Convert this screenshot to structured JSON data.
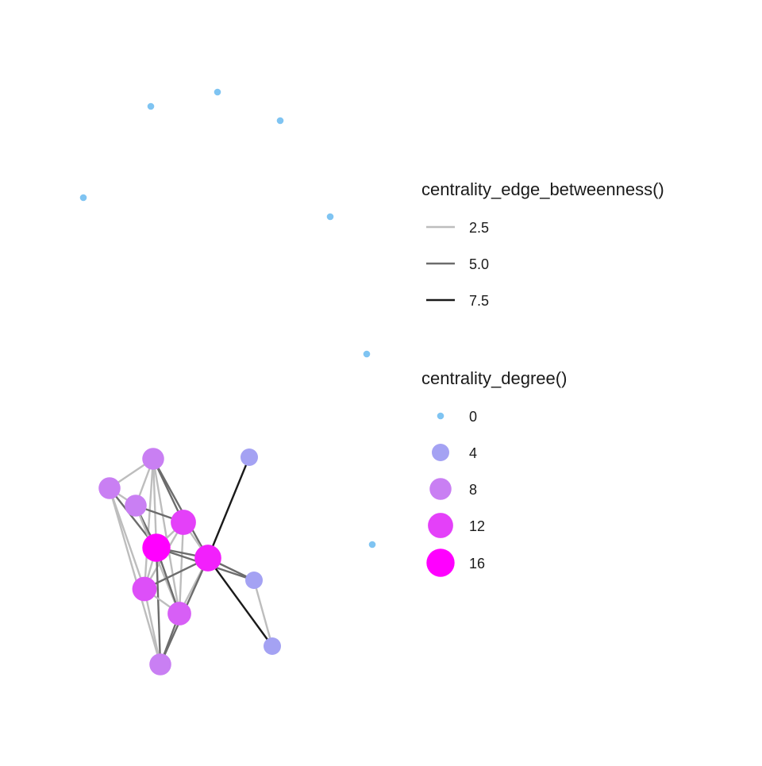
{
  "graph": {
    "nodes": [
      {
        "id": "n1",
        "degree": 0
      },
      {
        "id": "n2",
        "degree": 0
      },
      {
        "id": "n3",
        "degree": 0
      },
      {
        "id": "n4",
        "degree": 0
      },
      {
        "id": "n5",
        "degree": 0
      },
      {
        "id": "n6",
        "degree": 0
      },
      {
        "id": "n7",
        "degree": 0
      },
      {
        "id": "a",
        "degree": 8
      },
      {
        "id": "b",
        "degree": 8
      },
      {
        "id": "c",
        "degree": 8
      },
      {
        "id": "d",
        "degree": 12
      },
      {
        "id": "e",
        "degree": 16
      },
      {
        "id": "f",
        "degree": 14
      },
      {
        "id": "g",
        "degree": 11
      },
      {
        "id": "h",
        "degree": 10
      },
      {
        "id": "i",
        "degree": 8
      },
      {
        "id": "j",
        "degree": 4
      },
      {
        "id": "k",
        "degree": 4
      },
      {
        "id": "l",
        "degree": 4
      }
    ],
    "edges": [
      {
        "from": "a",
        "to": "b",
        "betweenness": 2.5
      },
      {
        "from": "a",
        "to": "c",
        "betweenness": 2.5
      },
      {
        "from": "a",
        "to": "d",
        "betweenness": 5.0
      },
      {
        "from": "a",
        "to": "e",
        "betweenness": 2.5
      },
      {
        "from": "a",
        "to": "g",
        "betweenness": 2.5
      },
      {
        "from": "a",
        "to": "h",
        "betweenness": 2.5
      },
      {
        "from": "a",
        "to": "f",
        "betweenness": 5.0
      },
      {
        "from": "b",
        "to": "c",
        "betweenness": 2.5
      },
      {
        "from": "b",
        "to": "e",
        "betweenness": 5.0
      },
      {
        "from": "b",
        "to": "g",
        "betweenness": 2.5
      },
      {
        "from": "b",
        "to": "i",
        "betweenness": 2.5
      },
      {
        "from": "c",
        "to": "d",
        "betweenness": 5.0
      },
      {
        "from": "c",
        "to": "e",
        "betweenness": 5.0
      },
      {
        "from": "c",
        "to": "h",
        "betweenness": 2.5
      },
      {
        "from": "d",
        "to": "e",
        "betweenness": 2.5
      },
      {
        "from": "d",
        "to": "f",
        "betweenness": 2.5
      },
      {
        "from": "d",
        "to": "g",
        "betweenness": 2.5
      },
      {
        "from": "d",
        "to": "h",
        "betweenness": 2.5
      },
      {
        "from": "e",
        "to": "f",
        "betweenness": 5.0
      },
      {
        "from": "e",
        "to": "g",
        "betweenness": 2.5
      },
      {
        "from": "e",
        "to": "h",
        "betweenness": 5.0
      },
      {
        "from": "e",
        "to": "i",
        "betweenness": 5.0
      },
      {
        "from": "e",
        "to": "k",
        "betweenness": 5.0
      },
      {
        "from": "f",
        "to": "g",
        "betweenness": 5.0
      },
      {
        "from": "f",
        "to": "h",
        "betweenness": 2.5
      },
      {
        "from": "f",
        "to": "i",
        "betweenness": 5.0
      },
      {
        "from": "f",
        "to": "j",
        "betweenness": 7.5
      },
      {
        "from": "f",
        "to": "k",
        "betweenness": 5.0
      },
      {
        "from": "f",
        "to": "l",
        "betweenness": 7.5
      },
      {
        "from": "g",
        "to": "h",
        "betweenness": 2.5
      },
      {
        "from": "g",
        "to": "i",
        "betweenness": 2.5
      },
      {
        "from": "h",
        "to": "i",
        "betweenness": 5.0
      },
      {
        "from": "k",
        "to": "l",
        "betweenness": 2.5
      }
    ]
  },
  "legend_edges": {
    "title": "centrality_edge_betweenness()",
    "items": [
      {
        "label": "2.5",
        "value": 2.5
      },
      {
        "label": "5.0",
        "value": 5.0
      },
      {
        "label": "7.5",
        "value": 7.5
      }
    ]
  },
  "legend_nodes": {
    "title": "centrality_degree()",
    "items": [
      {
        "label": "0",
        "value": 0
      },
      {
        "label": "4",
        "value": 4
      },
      {
        "label": "8",
        "value": 8
      },
      {
        "label": "12",
        "value": 12
      },
      {
        "label": "16",
        "value": 16
      }
    ]
  },
  "colors": {
    "degree_low": "#7fc4f2",
    "degree_mid": "#c97ff3",
    "degree_high": "#ff00ff",
    "edge_low": "#bdbdbd",
    "edge_high": "#1a1a1a"
  }
}
